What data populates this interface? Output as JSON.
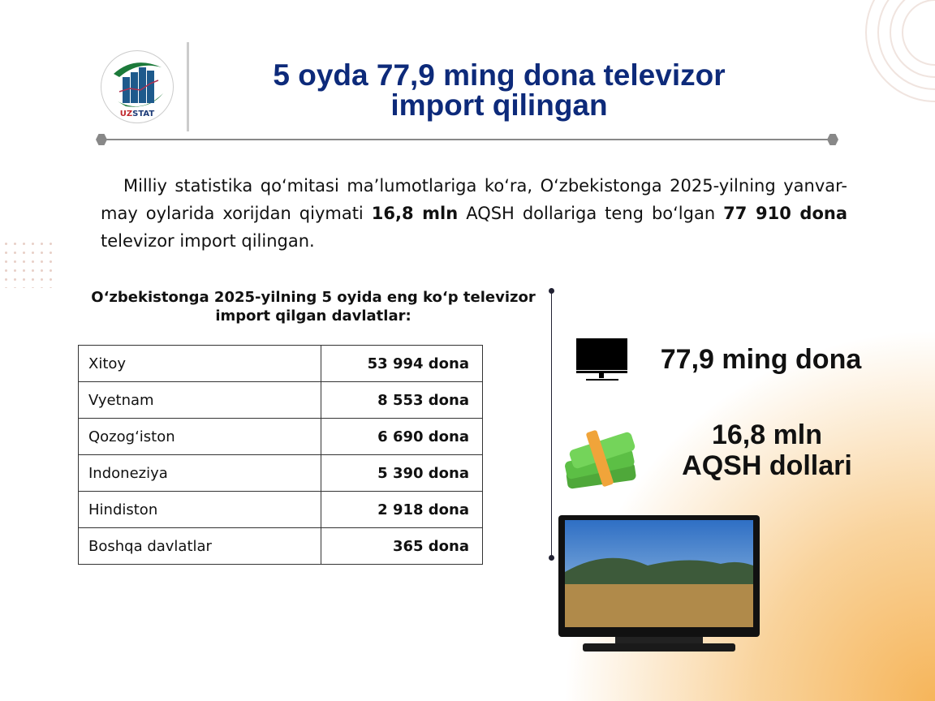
{
  "logo": {
    "text": "UZSTAT"
  },
  "title": {
    "line1": "5 oyda 77,9 ming dona televizor",
    "line2": "import qilingan"
  },
  "intro": {
    "p1": "Milliy statistika qo‘mitasi ma’lumotlariga ko‘ra, O‘zbekistonga  2025-yilning yanvar-may oylarida xorijdan qiymati ",
    "b1": "16,8 mln",
    "p2": " AQSH dollariga teng bo‘lgan ",
    "b2": "77 910 dona",
    "p3": " televizor import qilingan."
  },
  "table": {
    "caption": "O‘zbekistonga 2025-yilning 5 oyida eng ko‘p televizor import qilgan davlatlar:",
    "rows": [
      {
        "country": "Xitoy",
        "value": "53 994 dona"
      },
      {
        "country": "Vyetnam",
        "value": "8 553 dona"
      },
      {
        "country": "Qozog‘iston",
        "value": "6 690 dona"
      },
      {
        "country": "Indoneziya",
        "value": "5 390 dona"
      },
      {
        "country": "Hindiston",
        "value": "2 918 dona"
      },
      {
        "country": "Boshqa davlatlar",
        "value": "365 dona"
      }
    ]
  },
  "stats": {
    "units": "77,9 ming dona",
    "value_line1": "16,8 mln",
    "value_line2": "AQSH dollari"
  },
  "colors": {
    "title": "#0d2a7a",
    "accent_glow": "#f6b55a"
  },
  "icons": [
    "monitor-icon",
    "money-stack-icon",
    "television-image"
  ]
}
